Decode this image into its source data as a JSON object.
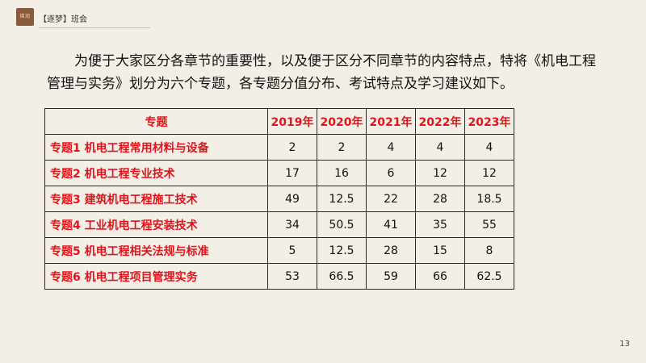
{
  "header": {
    "logo_text": "梯润",
    "title": "【逐梦】班会"
  },
  "intro": {
    "text": "为便于大家区分各章节的重要性，以及便于区分不同章节的内容特点，特将《机电工程管理与实务》划分为六个专题，各专题分值分布、考试特点及学习建议如下。"
  },
  "table": {
    "headers": [
      "专题",
      "2019年",
      "2020年",
      "2021年",
      "2022年",
      "2023年"
    ],
    "rows": [
      {
        "topic": "专题1  机电工程常用材料与设备",
        "values": [
          "2",
          "2",
          "4",
          "4",
          "4"
        ]
      },
      {
        "topic": "专题2  机电工程专业技术",
        "values": [
          "17",
          "16",
          "6",
          "12",
          "12"
        ]
      },
      {
        "topic": "专题3  建筑机电工程施工技术",
        "values": [
          "49",
          "12.5",
          "22",
          "28",
          "18.5"
        ]
      },
      {
        "topic": "专题4  工业机电工程安装技术",
        "values": [
          "34",
          "50.5",
          "41",
          "35",
          "55"
        ]
      },
      {
        "topic": "专题5  机电工程相关法规与标准",
        "values": [
          "5",
          "12.5",
          "28",
          "15",
          "8"
        ]
      },
      {
        "topic": "专题6  机电工程项目管理实务",
        "values": [
          "53",
          "66.5",
          "59",
          "66",
          "62.5"
        ]
      }
    ]
  },
  "footer": {
    "page_number": "13"
  },
  "colors": {
    "accent_red": "#e1141b",
    "background": "#f3efe6",
    "logo_brown": "#8a5a3c"
  }
}
